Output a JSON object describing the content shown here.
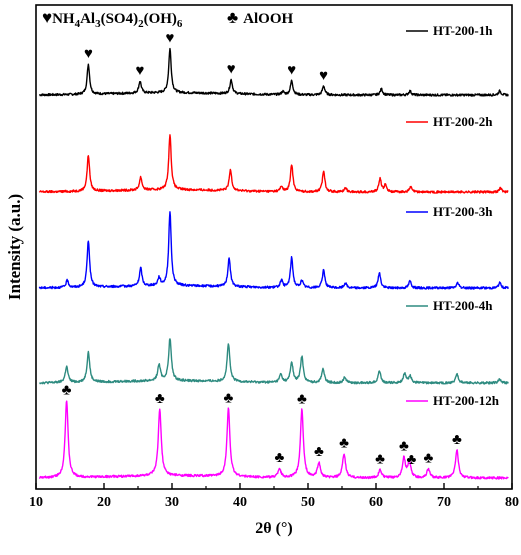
{
  "chart_data": {
    "type": "line",
    "xlabel": "2θ (°)",
    "ylabel": "Intensity (a.u.)",
    "xlim": [
      10,
      80
    ],
    "x_ticks": [
      10,
      20,
      30,
      40,
      50,
      60,
      70,
      80
    ],
    "grid": false,
    "legend_placement": "series labels at top-right of each trace",
    "phase_legend": [
      {
        "symbol": "♥",
        "formula_parts": [
          "NH",
          "4",
          "Al",
          "3",
          "(SO4)",
          "2",
          "(OH)",
          "6"
        ]
      },
      {
        "symbol": "♣",
        "label": "AlOOH"
      }
    ],
    "series": [
      {
        "name": "HT-200-1h",
        "color": "#000000",
        "peaks": [
          [
            17.7,
            30
          ],
          [
            25.3,
            12
          ],
          [
            29.7,
            44
          ],
          [
            38.7,
            14
          ],
          [
            46.3,
            3
          ],
          [
            47.6,
            14
          ],
          [
            52.3,
            9
          ],
          [
            60.8,
            6
          ],
          [
            65.0,
            4
          ],
          [
            78.2,
            4
          ]
        ],
        "markers": [
          {
            "symbol": "♥",
            "x": 17.7
          },
          {
            "symbol": "♥",
            "x": 25.3
          },
          {
            "symbol": "♥",
            "x": 29.7
          },
          {
            "symbol": "♥",
            "x": 38.7
          },
          {
            "symbol": "♥",
            "x": 47.6
          },
          {
            "symbol": "♥",
            "x": 52.3
          }
        ]
      },
      {
        "name": "HT-200-2h",
        "color": "#ff0000",
        "peaks": [
          [
            17.7,
            36
          ],
          [
            25.4,
            13
          ],
          [
            29.7,
            55
          ],
          [
            38.6,
            21
          ],
          [
            46.1,
            5
          ],
          [
            47.6,
            27
          ],
          [
            52.3,
            21
          ],
          [
            55.5,
            4
          ],
          [
            60.6,
            13
          ],
          [
            61.4,
            7
          ],
          [
            65.1,
            5
          ],
          [
            78.3,
            4
          ]
        ],
        "markers": []
      },
      {
        "name": "HT-200-3h",
        "color": "#0000ff",
        "peaks": [
          [
            14.6,
            7
          ],
          [
            17.7,
            47
          ],
          [
            25.4,
            18
          ],
          [
            28.1,
            8
          ],
          [
            29.7,
            74
          ],
          [
            38.4,
            29
          ],
          [
            46.1,
            7
          ],
          [
            47.6,
            30
          ],
          [
            49.1,
            7
          ],
          [
            52.3,
            18
          ],
          [
            55.5,
            5
          ],
          [
            60.5,
            15
          ],
          [
            65.0,
            7
          ],
          [
            72.0,
            5
          ],
          [
            78.2,
            5
          ]
        ],
        "markers": []
      },
      {
        "name": "HT-200-4h",
        "color": "#2e8b80",
        "peaks": [
          [
            14.5,
            16
          ],
          [
            17.7,
            30
          ],
          [
            28.1,
            16
          ],
          [
            29.7,
            42
          ],
          [
            38.3,
            38
          ],
          [
            46.0,
            8
          ],
          [
            47.6,
            20
          ],
          [
            49.1,
            26
          ],
          [
            52.2,
            14
          ],
          [
            55.4,
            6
          ],
          [
            60.5,
            12
          ],
          [
            64.2,
            9
          ],
          [
            65.0,
            7
          ],
          [
            71.9,
            9
          ],
          [
            78.2,
            4
          ]
        ],
        "markers": []
      },
      {
        "name": "HT-200-12h",
        "color": "#ff00ff",
        "peaks": [
          [
            14.5,
            77
          ],
          [
            28.2,
            67
          ],
          [
            38.3,
            68
          ],
          [
            45.8,
            9
          ],
          [
            49.1,
            68
          ],
          [
            51.6,
            15
          ],
          [
            55.3,
            24
          ],
          [
            60.6,
            8
          ],
          [
            64.1,
            20
          ],
          [
            64.9,
            16
          ],
          [
            67.7,
            9
          ],
          [
            71.9,
            28
          ]
        ],
        "markers": [
          {
            "symbol": "♣",
            "x": 14.5
          },
          {
            "symbol": "♣",
            "x": 28.2
          },
          {
            "symbol": "♣",
            "x": 38.3
          },
          {
            "symbol": "♣",
            "x": 45.8
          },
          {
            "symbol": "♣",
            "x": 49.1
          },
          {
            "symbol": "♣",
            "x": 51.6
          },
          {
            "symbol": "♣",
            "x": 55.3
          },
          {
            "symbol": "♣",
            "x": 60.6
          },
          {
            "symbol": "♣",
            "x": 64.1
          },
          {
            "symbol": "♣",
            "x": 65.2
          },
          {
            "symbol": "♣",
            "x": 67.7
          },
          {
            "symbol": "♣",
            "x": 71.9
          }
        ]
      }
    ]
  }
}
